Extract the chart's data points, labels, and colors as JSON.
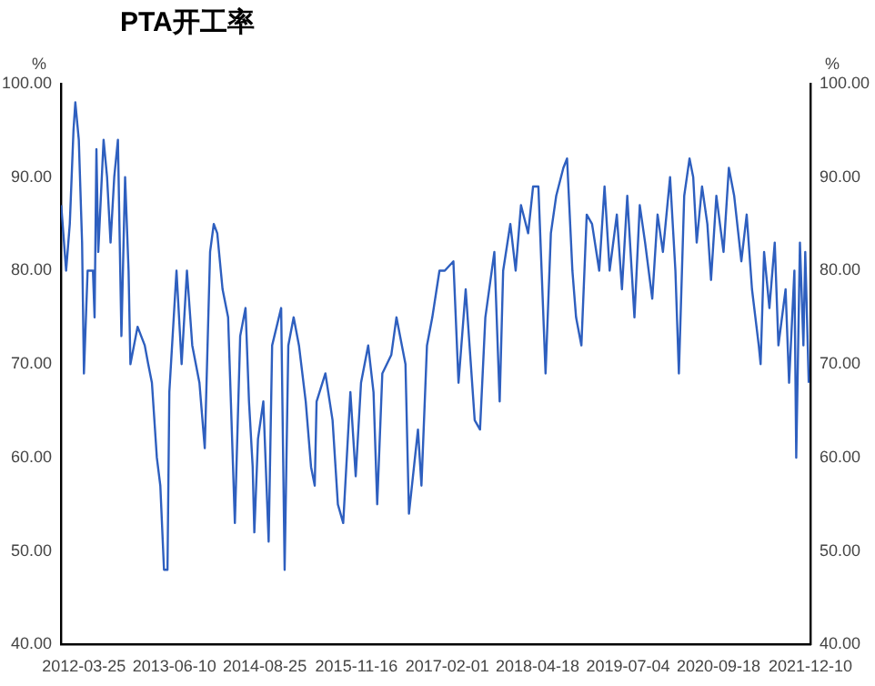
{
  "chart_data": {
    "type": "line",
    "title": "PTA开工率",
    "ylabel": "%",
    "y2label": "%",
    "x": [
      "2011-12-05",
      "2011-12-12",
      "2011-12-29",
      "2012-01-16",
      "2012-02-03",
      "2012-02-12",
      "2012-02-29",
      "2012-03-16",
      "2012-03-25",
      "2012-04-12",
      "2012-05-08",
      "2012-05-16",
      "2012-05-25",
      "2012-06-03",
      "2012-06-29",
      "2012-07-16",
      "2012-08-02",
      "2012-08-20",
      "2012-09-07",
      "2012-09-24",
      "2012-10-12",
      "2012-10-29",
      "2012-11-07",
      "2012-12-12",
      "2013-01-16",
      "2013-02-02",
      "2013-02-20",
      "2013-03-16",
      "2013-04-02",
      "2013-04-20",
      "2013-05-07",
      "2013-05-16",
      "2013-06-20",
      "2013-07-15",
      "2013-08-10",
      "2013-09-05",
      "2013-10-10",
      "2013-11-05",
      "2013-12-01",
      "2013-12-19",
      "2014-01-05",
      "2014-01-31",
      "2014-02-27",
      "2014-04-01",
      "2014-04-27",
      "2014-05-23",
      "2014-06-09",
      "2014-06-27",
      "2014-07-05",
      "2014-07-23",
      "2014-08-18",
      "2014-09-13",
      "2014-09-30",
      "2014-11-13",
      "2014-11-30",
      "2014-12-18",
      "2015-01-13",
      "2015-02-08",
      "2015-03-13",
      "2015-04-08",
      "2015-04-26",
      "2015-05-05",
      "2015-06-17",
      "2015-07-22",
      "2015-08-17",
      "2015-09-12",
      "2015-10-17",
      "2015-11-12",
      "2015-12-08",
      "2016-01-12",
      "2016-02-07",
      "2016-02-25",
      "2016-03-21",
      "2016-05-04",
      "2016-05-29",
      "2016-07-12",
      "2016-07-29",
      "2016-09-11",
      "2016-09-28",
      "2016-10-25",
      "2016-11-20",
      "2016-12-25",
      "2017-01-20",
      "2017-03-03",
      "2017-03-28",
      "2017-05-02",
      "2017-06-15",
      "2017-07-11",
      "2017-08-06",
      "2017-09-19",
      "2017-10-15",
      "2017-11-01",
      "2017-12-06",
      "2018-01-01",
      "2018-01-27",
      "2018-03-03",
      "2018-03-27",
      "2018-04-22",
      "2018-05-27",
      "2018-06-22",
      "2018-07-18",
      "2018-08-22",
      "2018-09-09",
      "2018-10-05",
      "2018-10-23",
      "2018-11-18",
      "2018-12-14",
      "2019-01-09",
      "2019-02-13",
      "2019-03-11",
      "2019-04-05",
      "2019-05-10",
      "2019-06-04",
      "2019-06-30",
      "2019-08-04",
      "2019-08-30",
      "2019-09-25",
      "2019-10-30",
      "2019-11-25",
      "2019-12-21",
      "2020-01-25",
      "2020-02-20",
      "2020-03-08",
      "2020-04-03",
      "2020-04-29",
      "2020-05-17",
      "2020-06-03",
      "2020-06-29",
      "2020-07-25",
      "2020-08-12",
      "2020-09-07",
      "2020-10-12",
      "2020-11-07",
      "2020-12-03",
      "2021-01-07",
      "2021-02-02",
      "2021-02-28",
      "2021-04-02",
      "2021-04-11",
      "2021-04-28",
      "2021-05-24",
      "2021-06-19",
      "2021-07-07",
      "2021-08-11",
      "2021-08-28",
      "2021-09-23",
      "2021-10-02",
      "2021-10-20",
      "2021-11-06",
      "2021-11-15",
      "2021-12-02"
    ],
    "series": [
      {
        "color": "#2e5fbf",
        "values": [
          87,
          85,
          80,
          85,
          95,
          98,
          94,
          83,
          69,
          80,
          80,
          75,
          93,
          82,
          94,
          90,
          83,
          90,
          94,
          73,
          90,
          80,
          70,
          74,
          72,
          70,
          68,
          60,
          57,
          48,
          48,
          67,
          80,
          70,
          80,
          72,
          68,
          61,
          82,
          85,
          84,
          78,
          75,
          53,
          73,
          76,
          66,
          59,
          52,
          62,
          66,
          51,
          72,
          76,
          48,
          72,
          75,
          72,
          66,
          59,
          57,
          66,
          69,
          64,
          55,
          53,
          67,
          58,
          68,
          72,
          67,
          55,
          69,
          71,
          75,
          70,
          54,
          63,
          57,
          72,
          75,
          80,
          80,
          81,
          68,
          78,
          64,
          63,
          75,
          82,
          66,
          80,
          85,
          80,
          87,
          84,
          89,
          89,
          69,
          84,
          88,
          91,
          92,
          80,
          75,
          72,
          86,
          85,
          80,
          89,
          80,
          86,
          78,
          88,
          75,
          87,
          83,
          77,
          86,
          82,
          90,
          80,
          69,
          88,
          92,
          90,
          83,
          89,
          85,
          79,
          88,
          82,
          91,
          88,
          81,
          86,
          78,
          72,
          70,
          82,
          76,
          83,
          72,
          78,
          68,
          80,
          60,
          83,
          72,
          82,
          68
        ]
      }
    ],
    "xlim": [
      "2011-12-04",
      "2021-12-10"
    ],
    "xticks": [
      "2012-03-25",
      "2013-06-10",
      "2014-08-25",
      "2015-11-16",
      "2017-02-01",
      "2018-04-18",
      "2019-07-04",
      "2020-09-18",
      "2021-12-10"
    ],
    "ylim": [
      40,
      100
    ],
    "yticks": [
      {
        "value": 40,
        "label": "40.00"
      },
      {
        "value": 50,
        "label": "50.00"
      },
      {
        "value": 60,
        "label": "60.00"
      },
      {
        "value": 70,
        "label": "70.00"
      },
      {
        "value": 80,
        "label": "80.00"
      },
      {
        "value": 90,
        "label": "90.00"
      },
      {
        "value": 100,
        "label": "100.00"
      }
    ],
    "y2lim": [
      40,
      100
    ],
    "y2ticks": [
      {
        "value": 40,
        "label": "40.00"
      },
      {
        "value": 50,
        "label": "50.00"
      },
      {
        "value": 60,
        "label": "60.00"
      },
      {
        "value": 70,
        "label": "70.00"
      },
      {
        "value": 80,
        "label": "80.00"
      },
      {
        "value": 90,
        "label": "90.00"
      },
      {
        "value": 100,
        "label": "100.00"
      }
    ],
    "grid": false,
    "legend": false,
    "marker": "none",
    "line_style": "solid"
  }
}
